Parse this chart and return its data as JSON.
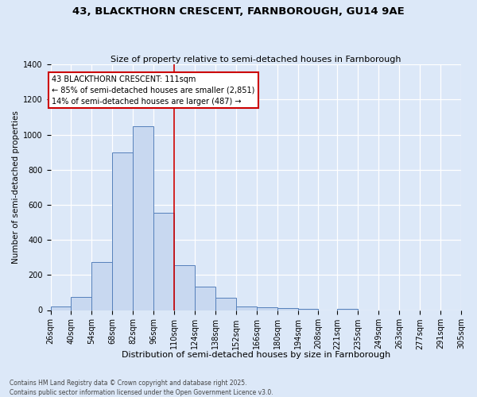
{
  "title": "43, BLACKTHORN CRESCENT, FARNBOROUGH, GU14 9AE",
  "subtitle": "Size of property relative to semi-detached houses in Farnborough",
  "xlabel": "Distribution of semi-detached houses by size in Farnborough",
  "ylabel": "Number of semi-detached properties",
  "bar_color": "#c8d8f0",
  "bar_edge_color": "#5580bb",
  "background_color": "#dce8f8",
  "plot_bg_color": "#dce8f8",
  "grid_color": "#ffffff",
  "vline_value": 110,
  "vline_color": "#cc0000",
  "annotation_text": "43 BLACKTHORN CRESCENT: 111sqm\n← 85% of semi-detached houses are smaller (2,851)\n14% of semi-detached houses are larger (487) →",
  "annotation_box_facecolor": "#ffffff",
  "annotation_box_edgecolor": "#cc0000",
  "footer_text": "Contains HM Land Registry data © Crown copyright and database right 2025.\nContains public sector information licensed under the Open Government Licence v3.0.",
  "bin_edges": [
    26,
    40,
    54,
    68,
    82,
    96,
    110,
    124,
    138,
    152,
    166,
    180,
    194,
    208,
    221,
    235,
    249,
    263,
    277,
    291,
    305
  ],
  "bin_labels": [
    "26sqm",
    "40sqm",
    "54sqm",
    "68sqm",
    "82sqm",
    "96sqm",
    "110sqm",
    "124sqm",
    "138sqm",
    "152sqm",
    "166sqm",
    "180sqm",
    "194sqm",
    "208sqm",
    "221sqm",
    "235sqm",
    "249sqm",
    "263sqm",
    "277sqm",
    "291sqm",
    "305sqm"
  ],
  "bar_heights": [
    20,
    75,
    275,
    900,
    1050,
    555,
    255,
    135,
    70,
    20,
    15,
    10,
    5,
    0,
    5,
    0,
    0,
    0,
    0,
    0
  ],
  "ylim": [
    0,
    1400
  ],
  "yticks": [
    0,
    200,
    400,
    600,
    800,
    1000,
    1200,
    1400
  ],
  "title_fontsize": 9.5,
  "subtitle_fontsize": 8,
  "xlabel_fontsize": 8,
  "ylabel_fontsize": 7.5,
  "tick_fontsize": 7,
  "annotation_fontsize": 7,
  "footer_fontsize": 5.5
}
